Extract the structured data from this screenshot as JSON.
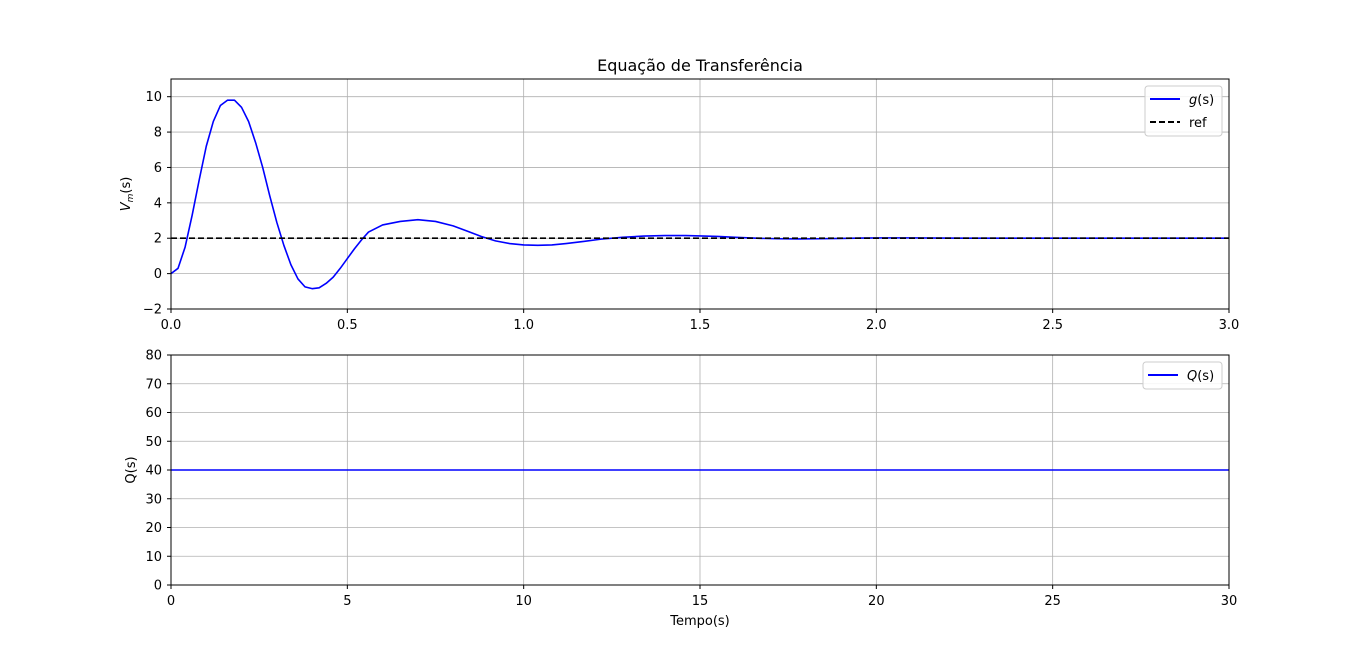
{
  "chart_data": [
    {
      "type": "line",
      "title": "Equação de Transferência",
      "xlabel": "",
      "ylabel_main": "V",
      "ylabel_sub": "m",
      "ylabel_tail": "(s)",
      "xlim": [
        0,
        3
      ],
      "ylim": [
        -2,
        11
      ],
      "x_ticks": [
        0,
        0.5,
        1,
        1.5,
        2,
        2.5,
        3
      ],
      "x_tick_labels": [
        "0.0",
        "0.5",
        "1.0",
        "1.5",
        "2.0",
        "2.5",
        "3.0"
      ],
      "y_ticks": [
        -2,
        0,
        2,
        4,
        6,
        8,
        10
      ],
      "y_tick_labels": [
        "−2",
        "0",
        "2",
        "4",
        "6",
        "8",
        "10"
      ],
      "grid": true,
      "legend_position": "top-right",
      "series": [
        {
          "name": "g(s)",
          "name_italic_part": "g",
          "name_plain_part": "(s)",
          "color": "#0000ff",
          "style": "solid",
          "x": [
            0,
            0.02,
            0.04,
            0.06,
            0.08,
            0.1,
            0.12,
            0.14,
            0.16,
            0.18,
            0.2,
            0.22,
            0.24,
            0.26,
            0.28,
            0.3,
            0.32,
            0.34,
            0.36,
            0.38,
            0.4,
            0.42,
            0.44,
            0.46,
            0.48,
            0.5,
            0.52,
            0.54,
            0.56,
            0.6,
            0.65,
            0.7,
            0.75,
            0.8,
            0.84,
            0.88,
            0.92,
            0.96,
            1.0,
            1.04,
            1.08,
            1.12,
            1.17,
            1.22,
            1.28,
            1.34,
            1.4,
            1.46,
            1.5,
            1.55,
            1.6,
            1.66,
            1.72,
            1.78,
            1.84,
            1.9,
            1.96,
            2.02,
            2.1,
            2.18,
            2.26,
            2.34,
            2.42,
            2.5,
            2.6,
            2.7,
            2.8,
            2.9,
            3.0
          ],
          "values": [
            0,
            0.3,
            1.5,
            3.3,
            5.3,
            7.2,
            8.6,
            9.5,
            9.8,
            9.8,
            9.4,
            8.6,
            7.4,
            6.0,
            4.4,
            2.9,
            1.6,
            0.5,
            -0.3,
            -0.75,
            -0.85,
            -0.8,
            -0.55,
            -0.2,
            0.3,
            0.85,
            1.4,
            1.9,
            2.35,
            2.75,
            2.95,
            3.05,
            2.95,
            2.7,
            2.4,
            2.1,
            1.85,
            1.7,
            1.62,
            1.6,
            1.62,
            1.7,
            1.82,
            1.95,
            2.05,
            2.12,
            2.15,
            2.15,
            2.13,
            2.1,
            2.05,
            2.0,
            1.97,
            1.96,
            1.97,
            1.99,
            2.01,
            2.02,
            2.02,
            2.01,
            2.0,
            2.0,
            2.0,
            2.0,
            2.0,
            2.0,
            2.0,
            2.0,
            2.0
          ]
        },
        {
          "name": "ref",
          "color": "#000000",
          "style": "dashed",
          "x": [
            0,
            3
          ],
          "values": [
            2,
            2
          ]
        }
      ]
    },
    {
      "type": "line",
      "title": "",
      "xlabel": "Tempo(s)",
      "ylabel": "Q(s)",
      "xlim": [
        0,
        30
      ],
      "ylim": [
        0,
        80
      ],
      "x_ticks": [
        0,
        5,
        10,
        15,
        20,
        25,
        30
      ],
      "x_tick_labels": [
        "0",
        "5",
        "10",
        "15",
        "20",
        "25",
        "30"
      ],
      "y_ticks": [
        0,
        10,
        20,
        30,
        40,
        50,
        60,
        70,
        80
      ],
      "y_tick_labels": [
        "0",
        "10",
        "20",
        "30",
        "40",
        "50",
        "60",
        "70",
        "80"
      ],
      "grid": true,
      "legend_position": "top-right",
      "series": [
        {
          "name": "Q(s)",
          "name_italic_part": "Q",
          "name_plain_part": "(s)",
          "color": "#0000ff",
          "style": "solid",
          "x": [
            0,
            30
          ],
          "values": [
            40,
            40
          ]
        }
      ]
    }
  ]
}
